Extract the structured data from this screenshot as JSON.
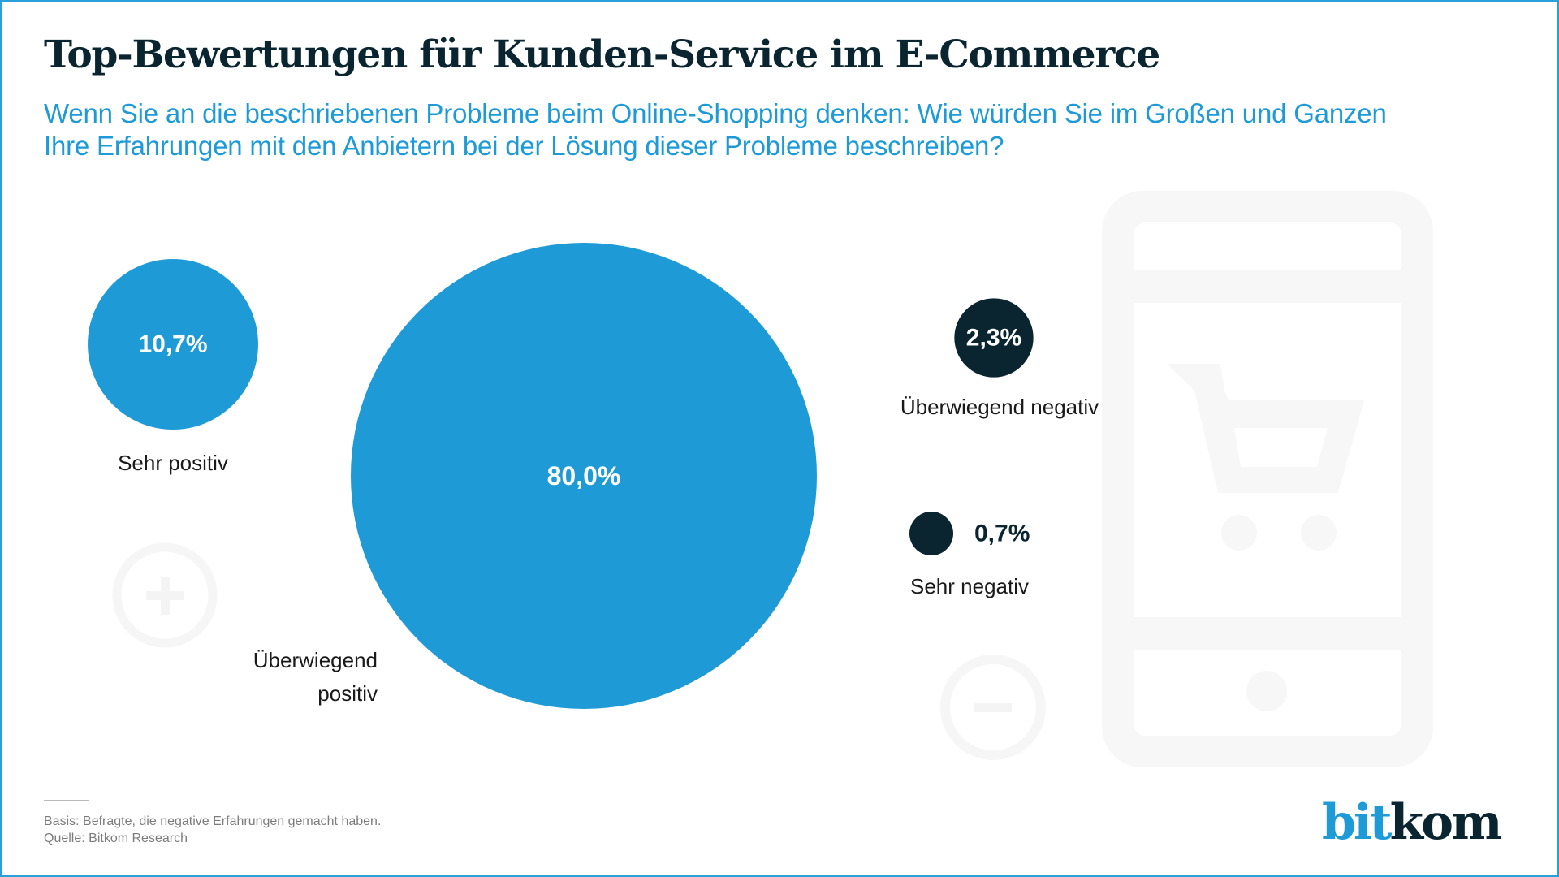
{
  "header": {
    "title": "Top-Bewertungen für Kunden-Service im E-Commerce",
    "subtitle_lines": [
      "Wenn Sie an die beschriebenen Probleme beim Online-Shopping denken: Wie würden Sie im Großen und Ganzen",
      "Ihre Erfahrungen mit den Anbietern bei der Lösung dieser Probleme beschreiben?"
    ]
  },
  "colors": {
    "positive": "#1e9bd7",
    "negative": "#0a2530",
    "decor": "#f6f6f6",
    "text": "#1a1a1a"
  },
  "chart_data": {
    "type": "bubble",
    "title": "Top-Bewertungen für Kunden-Service im E-Commerce",
    "unit": "%",
    "series": [
      {
        "name": "Sehr positiv",
        "value": 10.7,
        "display": "10,7%",
        "label_lines": [
          "Sehr positiv"
        ],
        "group": "positive"
      },
      {
        "name": "Überwiegend positiv",
        "value": 80.0,
        "display": "80,0%",
        "label_lines": [
          "Überwiegend",
          "positiv"
        ],
        "group": "positive"
      },
      {
        "name": "Überwiegend negativ",
        "value": 2.3,
        "display": "2,3%",
        "label_lines": [
          "Überwiegend negativ"
        ],
        "group": "negative"
      },
      {
        "name": "Sehr negativ",
        "value": 0.7,
        "display": "0,7%",
        "label_lines": [
          "Sehr negativ"
        ],
        "group": "negative"
      }
    ],
    "value_label_placement": [
      "inside",
      "inside",
      "inside",
      "right"
    ]
  },
  "decorations": {
    "icons": [
      "plus-circle-icon",
      "minus-circle-icon",
      "smartphone-shopping-cart-icon"
    ]
  },
  "footer": {
    "notes": [
      "Basis: Befragte, die negative Erfahrungen gemacht haben.",
      "Quelle: Bitkom Research"
    ],
    "logo_part1": "bit",
    "logo_part2": "kom"
  }
}
